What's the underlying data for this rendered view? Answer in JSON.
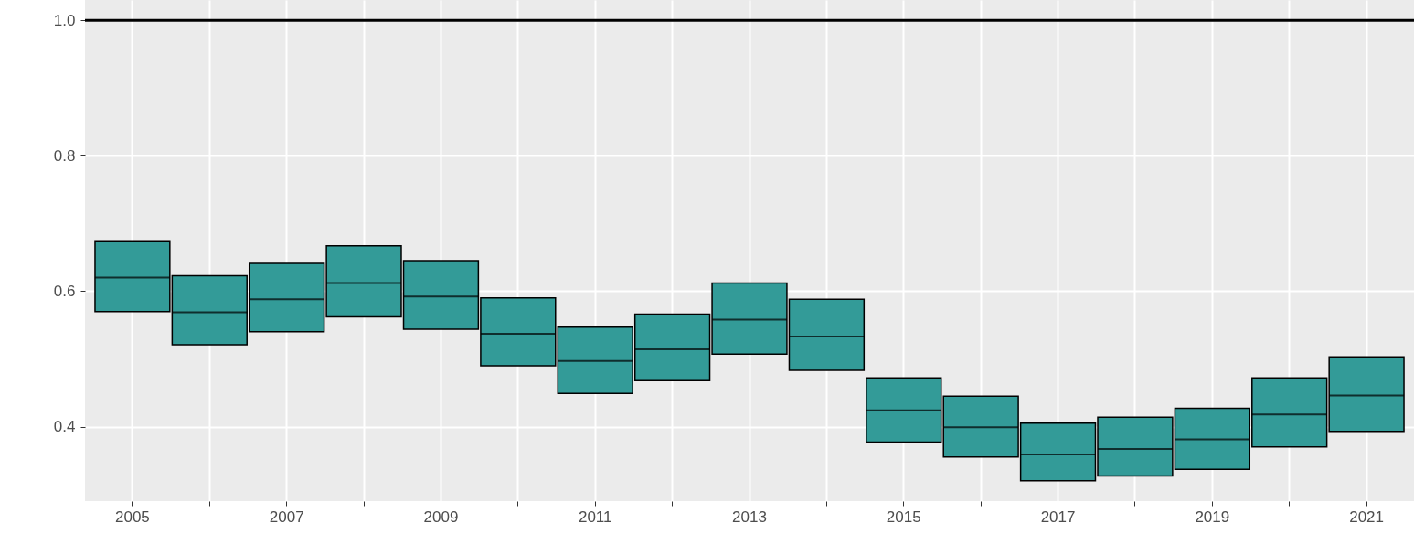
{
  "chart_data": {
    "type": "box",
    "categories": [
      "2005",
      null,
      "2007",
      null,
      "2009",
      null,
      "2011",
      null,
      "2013",
      null,
      "2015",
      null,
      "2017",
      null,
      "2019",
      null,
      "2021"
    ],
    "series": [
      {
        "color": "#339b98",
        "boxes": [
          {
            "low": 0.57,
            "q1": 0.57,
            "median": 0.62,
            "q3": 0.673,
            "high": 0.673
          },
          {
            "low": 0.521,
            "q1": 0.521,
            "median": 0.569,
            "q3": 0.623,
            "high": 0.623
          },
          {
            "low": 0.54,
            "q1": 0.54,
            "median": 0.588,
            "q3": 0.641,
            "high": 0.641
          },
          {
            "low": 0.562,
            "q1": 0.562,
            "median": 0.612,
            "q3": 0.667,
            "high": 0.667
          },
          {
            "low": 0.544,
            "q1": 0.544,
            "median": 0.592,
            "q3": 0.645,
            "high": 0.645
          },
          {
            "low": 0.49,
            "q1": 0.49,
            "median": 0.537,
            "q3": 0.59,
            "high": 0.59
          },
          {
            "low": 0.449,
            "q1": 0.449,
            "median": 0.497,
            "q3": 0.547,
            "high": 0.547
          },
          {
            "low": 0.468,
            "q1": 0.468,
            "median": 0.514,
            "q3": 0.566,
            "high": 0.566
          },
          {
            "low": 0.507,
            "q1": 0.507,
            "median": 0.558,
            "q3": 0.612,
            "high": 0.612
          },
          {
            "low": 0.483,
            "q1": 0.483,
            "median": 0.533,
            "q3": 0.588,
            "high": 0.588
          },
          {
            "low": 0.377,
            "q1": 0.377,
            "median": 0.424,
            "q3": 0.472,
            "high": 0.472
          },
          {
            "low": 0.355,
            "q1": 0.355,
            "median": 0.399,
            "q3": 0.445,
            "high": 0.445
          },
          {
            "low": 0.32,
            "q1": 0.32,
            "median": 0.359,
            "q3": 0.405,
            "high": 0.405
          },
          {
            "low": 0.327,
            "q1": 0.327,
            "median": 0.367,
            "q3": 0.414,
            "high": 0.414
          },
          {
            "low": 0.337,
            "q1": 0.337,
            "median": 0.381,
            "q3": 0.427,
            "high": 0.427
          },
          {
            "low": 0.37,
            "q1": 0.37,
            "median": 0.418,
            "q3": 0.472,
            "high": 0.472
          },
          {
            "low": 0.393,
            "q1": 0.393,
            "median": 0.446,
            "q3": 0.503,
            "high": 0.503
          }
        ]
      }
    ],
    "ylim": [
      0.29,
      1.03
    ],
    "yticks": [
      0.4,
      0.6,
      0.8,
      {
        "value": 1,
        "label": "1.0"
      }
    ],
    "grid": true,
    "ref_lines": [
      {
        "axis": "y",
        "value": 1,
        "color": "#000000"
      }
    ]
  }
}
